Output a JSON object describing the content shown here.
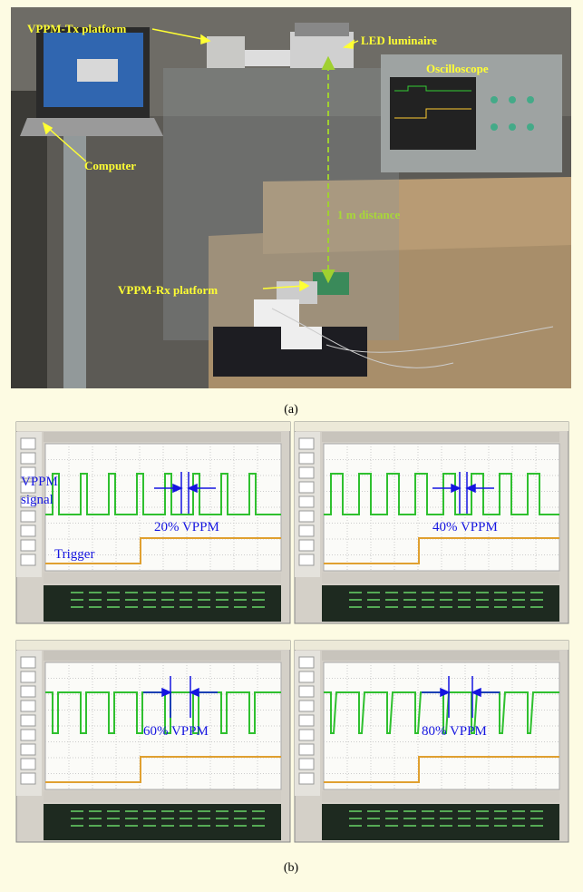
{
  "photo": {
    "labels": {
      "tx": "VPPM-Tx platform",
      "led": "LED luminaire",
      "scope": "Oscilloscope",
      "computer": "Computer",
      "distance": "1 m distance",
      "rx": "VPPM-Rx platform"
    }
  },
  "caption_a": "(a)",
  "scopes": [
    {
      "label": "20% VPPM",
      "signal_label": [
        "VPPM",
        "signal"
      ],
      "trigger_label": "Trigger"
    },
    {
      "label": "40% VPPM"
    },
    {
      "label": "60% VPPM"
    },
    {
      "label": "80% VPPM"
    }
  ],
  "caption_b": "(b)"
}
